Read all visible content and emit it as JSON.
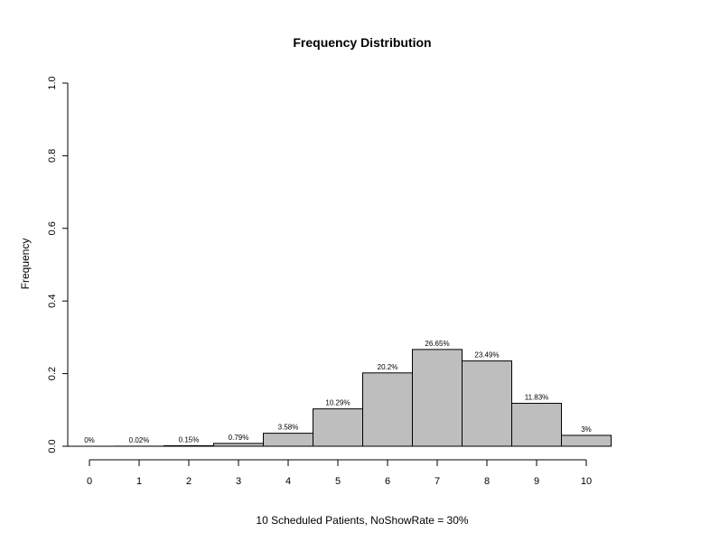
{
  "chart_data": {
    "type": "bar",
    "title": "Frequency Distribution",
    "xlabel": "10 Scheduled Patients,  NoShowRate = 30%",
    "ylabel": "Frequency",
    "categories": [
      "0",
      "1",
      "2",
      "3",
      "4",
      "5",
      "6",
      "7",
      "8",
      "9",
      "10"
    ],
    "values": [
      0,
      0.0002,
      0.0015,
      0.0079,
      0.0358,
      0.1029,
      0.202,
      0.2665,
      0.2349,
      0.1183,
      0.03
    ],
    "data_labels": [
      "0%",
      "0.02%",
      "0.15%",
      "0.79%",
      "3.58%",
      "10.29%",
      "20.2%",
      "26.65%",
      "23.49%",
      "11.83%",
      "3%"
    ],
    "ylim": [
      0,
      1
    ],
    "yticks": [
      "0.0",
      "0.2",
      "0.4",
      "0.6",
      "0.8",
      "1.0"
    ],
    "grid": false,
    "bar_color": "#bebebe"
  }
}
